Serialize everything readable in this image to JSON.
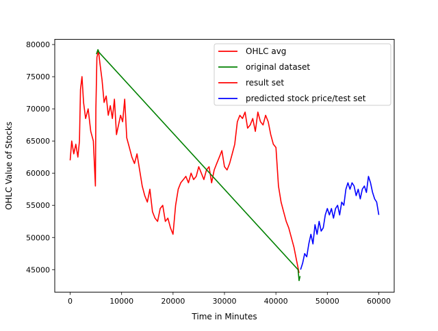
{
  "chart_data": {
    "type": "line",
    "title": "",
    "xlabel": "Time in Minutes",
    "ylabel": "OHLC Value of Stocks",
    "xlim": [
      -3000,
      63000
    ],
    "ylim": [
      41500,
      80800
    ],
    "x_ticks": [
      0,
      10000,
      20000,
      30000,
      40000,
      50000,
      60000
    ],
    "x_tick_labels": [
      "0",
      "10000",
      "20000",
      "30000",
      "40000",
      "50000",
      "60000"
    ],
    "y_ticks": [
      45000,
      50000,
      55000,
      60000,
      65000,
      70000,
      75000,
      80000
    ],
    "y_tick_labels": [
      "45000",
      "50000",
      "55000",
      "60000",
      "65000",
      "70000",
      "75000",
      "80000"
    ],
    "grid": false,
    "legend_position": "top-right",
    "series": [
      {
        "name": "OHLC avg",
        "color": "#ff0000",
        "x": [
          0,
          300,
          700,
          1100,
          1500,
          1800,
          2000,
          2300,
          2600,
          3000,
          3500,
          4000,
          4500,
          4900,
          5000,
          5200,
          5500,
          5800,
          6200,
          6600,
          7000,
          7400,
          7800,
          8200,
          8600,
          9000,
          9400,
          9800,
          10200,
          10600,
          11000,
          11500,
          12000,
          12500,
          13000,
          13500,
          14000,
          14500,
          15000,
          15500,
          16000,
          16500,
          17000,
          17500,
          18000,
          18500,
          19000,
          19500,
          20000,
          20500,
          21000,
          21500,
          22000,
          22500,
          23000,
          23500,
          24000,
          24500,
          25000,
          25500,
          26000,
          26500,
          27000,
          27500,
          28000,
          28500,
          29000,
          29500,
          30000,
          30500,
          31000,
          31500,
          32000,
          32500,
          33000,
          33500,
          34000,
          34500,
          35000,
          35500,
          36000,
          36500,
          37000,
          37500,
          38000,
          38500,
          39000,
          39500,
          40000,
          40500,
          41000,
          41500,
          42000,
          42500,
          43000,
          43500,
          44000,
          44500
        ],
        "y": [
          62000,
          65000,
          63000,
          64500,
          62500,
          65000,
          73000,
          75000,
          71000,
          68500,
          70000,
          66500,
          65000,
          58000,
          70000,
          78000,
          79000,
          77000,
          74500,
          71000,
          72000,
          69000,
          70500,
          68500,
          71500,
          66000,
          67500,
          69000,
          68000,
          71500,
          65500,
          64000,
          62500,
          61500,
          63000,
          60500,
          58000,
          56500,
          55500,
          57500,
          54000,
          53000,
          52500,
          54500,
          55000,
          52500,
          53000,
          51500,
          50500,
          55000,
          57500,
          58500,
          59000,
          59500,
          58500,
          60000,
          59000,
          59500,
          61000,
          60000,
          59000,
          60500,
          61000,
          58500,
          60500,
          61500,
          62500,
          63500,
          61000,
          60500,
          61500,
          63000,
          64500,
          68000,
          69000,
          68500,
          69500,
          67000,
          67500,
          68500,
          66500,
          69500,
          68000,
          67500,
          69000,
          68000,
          66000,
          64500,
          64000,
          58000,
          55500,
          54000,
          52500,
          51500,
          50000,
          48500,
          46500,
          44500
        ]
      },
      {
        "name": "original dataset",
        "color": "#008000",
        "x": [
          5100,
          5400,
          5600,
          44300,
          44500,
          44700
        ],
        "y": [
          78500,
          79200,
          78800,
          45000,
          43300,
          44000
        ]
      },
      {
        "name": "result set",
        "color": "#ff0000",
        "x": [],
        "y": []
      },
      {
        "name": "predicted stock price/test set",
        "color": "#0000ff",
        "x": [
          44800,
          45200,
          45600,
          46000,
          46400,
          46800,
          47200,
          47600,
          48000,
          48400,
          48800,
          49200,
          49600,
          50000,
          50400,
          50800,
          51200,
          51600,
          52000,
          52400,
          52800,
          53200,
          53600,
          54000,
          54400,
          54800,
          55200,
          55600,
          56000,
          56400,
          56800,
          57200,
          57600,
          58000,
          58400,
          58800,
          59200,
          59600,
          60000
        ],
        "y": [
          45000,
          46000,
          47500,
          47000,
          49000,
          50500,
          49000,
          52000,
          50500,
          52500,
          51000,
          51500,
          53500,
          54500,
          53500,
          54500,
          53000,
          54500,
          55000,
          53500,
          55500,
          55000,
          57500,
          58500,
          57500,
          58500,
          58000,
          56500,
          57500,
          56000,
          57500,
          58000,
          57000,
          59500,
          58500,
          57000,
          56000,
          55500,
          53500
        ]
      }
    ]
  }
}
